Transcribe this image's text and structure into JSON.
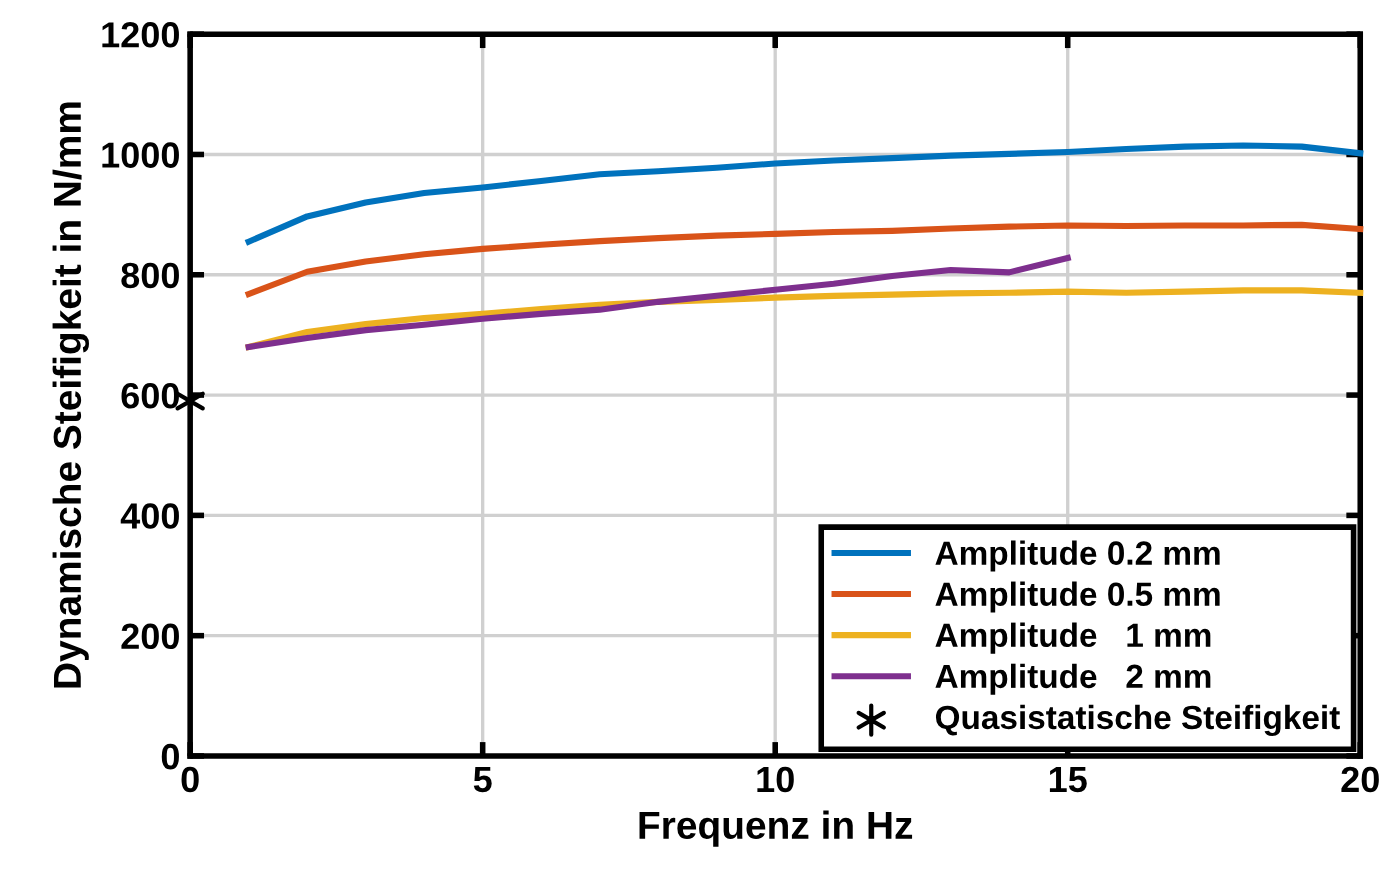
{
  "chart_data": {
    "type": "line",
    "xlabel": "Frequenz in Hz",
    "ylabel": "Dynamische Steifigkeit in N/mm",
    "x": [
      1,
      2,
      3,
      4,
      5,
      6,
      7,
      8,
      9,
      10,
      11,
      12,
      13,
      14,
      15,
      16,
      17,
      18,
      19,
      20
    ],
    "xlim": [
      0,
      20
    ],
    "xticks": [
      0,
      5,
      10,
      15,
      20
    ],
    "ylim": [
      0,
      1200
    ],
    "yticks": [
      0,
      200,
      400,
      600,
      800,
      1000,
      1200
    ],
    "grid": true,
    "legend": "bottom right",
    "marker": "none",
    "line_style": "solid",
    "series": [
      {
        "name": "Amplitude 0.2 mm",
        "color": "#0072bd",
        "values": [
          855,
          897,
          920,
          936,
          945,
          956,
          967,
          972,
          978,
          985,
          990,
          994,
          998,
          1001,
          1004,
          1009,
          1013,
          1015,
          1013,
          1002
        ]
      },
      {
        "name": "Amplitude 0.5 mm",
        "color": "#d95319",
        "values": [
          768,
          805,
          822,
          834,
          843,
          850,
          856,
          861,
          865,
          868,
          871,
          873,
          877,
          880,
          882,
          881,
          882,
          882,
          883,
          876
        ]
      },
      {
        "name": "Amplitude   1 mm",
        "color": "#edb120",
        "values": [
          680,
          705,
          718,
          728,
          735,
          743,
          750,
          755,
          758,
          762,
          765,
          767,
          769,
          770,
          772,
          770,
          772,
          774,
          774,
          770
        ]
      },
      {
        "name": "Amplitude   2 mm",
        "color": "#7e2f8e",
        "x": [
          1,
          2,
          3,
          4,
          5,
          6,
          7,
          8,
          9,
          10,
          11,
          12,
          13,
          14,
          15
        ],
        "values": [
          680,
          695,
          708,
          717,
          727,
          735,
          742,
          755,
          765,
          775,
          785,
          798,
          808,
          804,
          828
        ]
      },
      {
        "name": "Quasistatische Steifigkeit",
        "type": "scatter",
        "marker": "cross",
        "color": "#000000",
        "x": [
          0
        ],
        "values": [
          590
        ]
      }
    ]
  }
}
